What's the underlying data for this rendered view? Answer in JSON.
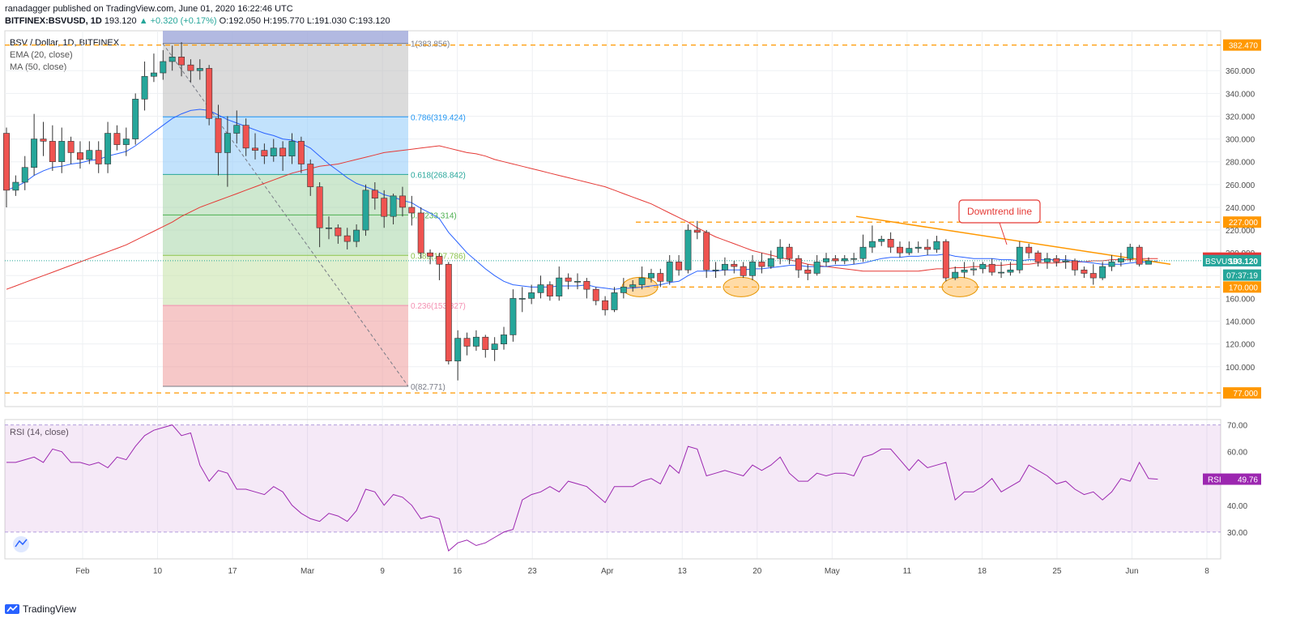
{
  "header": {
    "line1": "ranadagger published on TradingView.com, June 01, 2020 16:22:46 UTC",
    "symbol": "BITFINEX:BSVUSD, 1D",
    "price": "193.120",
    "change": "▲ +0.320 (+0.17%)",
    "ohlc": "O:192.050 H:195.770 L:191.030 C:193.120"
  },
  "legend": {
    "title": "BSV / Dollar, 1D, BITFINEX",
    "ema": "EMA (20, close)",
    "ma": "MA (50, close)"
  },
  "rsi_legend": "RSI (14, close)",
  "annotation": "Downtrend line",
  "footer": "TradingView",
  "colors": {
    "up": "#26a69a",
    "down": "#ef5350",
    "ema": "#2962ff",
    "ma": "#e53935",
    "rsi": "#9c27b0",
    "dashed": "#ff9800",
    "trend": "#ff9800"
  },
  "chart_data": [
    {
      "type": "candlestick",
      "title": "BSV / Dollar, 1D, BITFINEX",
      "ylim": [
        65,
        395
      ],
      "y_ticks": [
        "100.000",
        "120.000",
        "140.000",
        "160.000",
        "180.000",
        "200.000",
        "220.000",
        "240.000",
        "260.000",
        "280.000",
        "300.000",
        "320.000",
        "340.000",
        "360.000"
      ],
      "x_ticks": [
        "Feb",
        "10",
        "17",
        "Mar",
        "9",
        "16",
        "23",
        "Apr",
        "13",
        "20",
        "May",
        "11",
        "18",
        "25",
        "Jun",
        "8"
      ],
      "horizontal_levels": [
        382.47,
        227.0,
        170.0,
        77.0
      ],
      "price_labels": [
        {
          "text": "382.470",
          "value": 382.47,
          "color": "#ff9800"
        },
        {
          "text": "227.000",
          "value": 227.0,
          "color": "#ff9800"
        },
        {
          "text": "MA",
          "value2": "195.388",
          "value": 195.388,
          "color": "#e53935"
        },
        {
          "text": "EMA:MA",
          "value2": "193.143",
          "value": 193.143,
          "color": "#2962ff"
        },
        {
          "text": "BSVUSD",
          "value2": "193.120",
          "value": 193.12,
          "color": "#26a69a"
        },
        {
          "text": "07:37:19",
          "value": 180.5,
          "color": "#26a69a"
        },
        {
          "text": "170.000",
          "value": 170.0,
          "color": "#ff9800"
        },
        {
          "text": "77.000",
          "value": 77.0,
          "color": "#ff9800"
        }
      ],
      "fibonacci": [
        {
          "label": "1(383.856)",
          "level": 383.856,
          "color": "#787b86"
        },
        {
          "label": "0.786(319.424)",
          "level": 319.424,
          "color": "#2196f3"
        },
        {
          "label": "0.618(268.842)",
          "level": 268.842,
          "color": "#26a69a"
        },
        {
          "label": "0.5(233.314)",
          "level": 233.314,
          "color": "#4caf50"
        },
        {
          "label": "0.382(197.786)",
          "level": 197.786,
          "color": "#8bc34a"
        },
        {
          "label": "0.236(153.827)",
          "level": 153.827,
          "color": "#f48fb1"
        },
        {
          "label": "0(82.771)",
          "level": 82.771,
          "color": "#787b86"
        }
      ],
      "candles": [
        [
          305,
          255,
          310,
          240
        ],
        [
          255,
          262,
          268,
          250
        ],
        [
          262,
          275,
          285,
          255
        ],
        [
          275,
          300,
          322,
          268
        ],
        [
          300,
          298,
          315,
          285
        ],
        [
          298,
          280,
          312,
          272
        ],
        [
          280,
          298,
          310,
          270
        ],
        [
          298,
          288,
          302,
          278
        ],
        [
          288,
          282,
          298,
          274
        ],
        [
          282,
          290,
          298,
          278
        ],
        [
          290,
          278,
          298,
          270
        ],
        [
          278,
          305,
          315,
          270
        ],
        [
          305,
          295,
          312,
          290
        ],
        [
          295,
          300,
          310,
          285
        ],
        [
          300,
          335,
          340,
          295
        ],
        [
          335,
          355,
          368,
          325
        ],
        [
          355,
          358,
          375,
          350
        ],
        [
          358,
          368,
          378,
          352
        ],
        [
          368,
          372,
          382,
          360
        ],
        [
          372,
          365,
          385,
          355
        ],
        [
          365,
          360,
          370,
          350
        ],
        [
          360,
          362,
          370,
          352
        ],
        [
          362,
          318,
          365,
          312
        ],
        [
          318,
          288,
          330,
          268
        ],
        [
          288,
          305,
          320,
          258
        ],
        [
          305,
          312,
          325,
          296
        ],
        [
          312,
          292,
          318,
          285
        ],
        [
          292,
          290,
          305,
          282
        ],
        [
          290,
          285,
          296,
          278
        ],
        [
          285,
          292,
          300,
          280
        ],
        [
          292,
          285,
          298,
          272
        ],
        [
          285,
          298,
          305,
          278
        ],
        [
          298,
          278,
          302,
          270
        ],
        [
          278,
          258,
          282,
          250
        ],
        [
          258,
          222,
          262,
          205
        ],
        [
          222,
          222,
          232,
          212
        ],
        [
          222,
          215,
          225,
          208
        ],
        [
          215,
          210,
          222,
          203
        ],
        [
          210,
          220,
          225,
          205
        ],
        [
          220,
          255,
          260,
          215
        ],
        [
          255,
          248,
          262,
          238
        ],
        [
          248,
          232,
          255,
          222
        ],
        [
          232,
          250,
          252,
          225
        ],
        [
          250,
          240,
          258,
          232
        ],
        [
          240,
          235,
          250,
          224
        ],
        [
          235,
          200,
          240,
          195
        ],
        [
          200,
          197,
          203,
          190
        ],
        [
          197,
          190,
          200,
          176
        ],
        [
          190,
          105,
          192,
          102
        ],
        [
          105,
          125,
          132,
          88
        ],
        [
          125,
          118,
          130,
          110
        ],
        [
          118,
          126,
          132,
          114
        ],
        [
          126,
          115,
          128,
          108
        ],
        [
          115,
          120,
          126,
          105
        ],
        [
          120,
          128,
          135,
          115
        ],
        [
          128,
          160,
          168,
          122
        ],
        [
          160,
          160,
          170,
          148
        ],
        [
          160,
          165,
          172,
          155
        ],
        [
          165,
          172,
          180,
          160
        ],
        [
          172,
          162,
          175,
          158
        ],
        [
          162,
          178,
          188,
          158
        ],
        [
          178,
          175,
          182,
          168
        ],
        [
          175,
          175,
          182,
          168
        ],
        [
          175,
          168,
          178,
          160
        ],
        [
          168,
          158,
          170,
          154
        ],
        [
          158,
          150,
          162,
          145
        ],
        [
          150,
          165,
          170,
          148
        ],
        [
          165,
          170,
          178,
          160
        ],
        [
          170,
          172,
          176,
          166
        ],
        [
          172,
          178,
          188,
          168
        ],
        [
          178,
          182,
          186,
          174
        ],
        [
          182,
          175,
          186,
          170
        ],
        [
          175,
          192,
          198,
          172
        ],
        [
          192,
          185,
          198,
          180
        ],
        [
          185,
          220,
          225,
          182
        ],
        [
          220,
          218,
          228,
          212
        ],
        [
          218,
          185,
          220,
          178
        ],
        [
          185,
          185,
          192,
          178
        ],
        [
          185,
          190,
          196,
          180
        ],
        [
          190,
          188,
          193,
          182
        ],
        [
          188,
          180,
          192,
          178
        ],
        [
          180,
          192,
          198,
          176
        ],
        [
          192,
          188,
          200,
          182
        ],
        [
          188,
          195,
          202,
          186
        ],
        [
          195,
          205,
          212,
          190
        ],
        [
          205,
          195,
          208,
          190
        ],
        [
          195,
          185,
          198,
          178
        ],
        [
          185,
          182,
          190,
          176
        ],
        [
          182,
          192,
          198,
          180
        ],
        [
          192,
          195,
          200,
          188
        ],
        [
          195,
          193,
          198,
          190
        ],
        [
          193,
          195,
          198,
          190
        ],
        [
          195,
          195,
          200,
          190
        ],
        [
          195,
          205,
          216,
          192
        ],
        [
          205,
          210,
          224,
          200
        ],
        [
          210,
          212,
          215,
          206
        ],
        [
          212,
          205,
          218,
          200
        ],
        [
          205,
          200,
          210,
          196
        ],
        [
          200,
          204,
          210,
          198
        ],
        [
          204,
          205,
          210,
          200
        ],
        [
          205,
          203,
          212,
          198
        ],
        [
          203,
          210,
          215,
          200
        ],
        [
          210,
          178,
          212,
          175
        ],
        [
          178,
          183,
          188,
          176
        ],
        [
          183,
          185,
          192,
          178
        ],
        [
          185,
          186,
          192,
          180
        ],
        [
          186,
          190,
          192,
          182
        ],
        [
          190,
          183,
          195,
          180
        ],
        [
          183,
          183,
          192,
          178
        ],
        [
          183,
          185,
          192,
          180
        ],
        [
          185,
          205,
          210,
          182
        ],
        [
          205,
          200,
          208,
          195
        ],
        [
          200,
          192,
          202,
          188
        ],
        [
          192,
          195,
          200,
          186
        ],
        [
          195,
          192,
          198,
          188
        ],
        [
          192,
          193,
          198,
          186
        ],
        [
          193,
          185,
          195,
          180
        ],
        [
          185,
          182,
          188,
          178
        ],
        [
          182,
          178,
          190,
          172
        ],
        [
          178,
          188,
          192,
          176
        ],
        [
          188,
          192,
          198,
          184
        ],
        [
          192,
          195,
          200,
          188
        ],
        [
          195,
          205,
          208,
          192
        ],
        [
          205,
          190,
          207,
          188
        ],
        [
          190,
          193,
          196,
          191
        ]
      ],
      "ema20": [
        255,
        258,
        262,
        268,
        272,
        275,
        276,
        278,
        279,
        281,
        282,
        285,
        287,
        289,
        294,
        300,
        306,
        312,
        318,
        322,
        325,
        326,
        325,
        321,
        317,
        314,
        311,
        308,
        305,
        303,
        300,
        299,
        296,
        292,
        285,
        278,
        272,
        266,
        261,
        258,
        255,
        251,
        249,
        246,
        244,
        239,
        235,
        230,
        218,
        209,
        200,
        193,
        186,
        180,
        175,
        172,
        171,
        170,
        170,
        170,
        171,
        171,
        171,
        172,
        170,
        169,
        168,
        169,
        169,
        170,
        171,
        172,
        174,
        175,
        180,
        184,
        184,
        184,
        185,
        185,
        185,
        186,
        186,
        187,
        188,
        189,
        189,
        188,
        188,
        188,
        189,
        189,
        190,
        191,
        193,
        195,
        196,
        196,
        197,
        197,
        198,
        198,
        199,
        197,
        196,
        195,
        195,
        195,
        194,
        194,
        193,
        194,
        194,
        194,
        194,
        194,
        193,
        192,
        191,
        190,
        190,
        190,
        191,
        192,
        192,
        193
      ],
      "ma50": [
        168,
        171,
        174,
        177,
        180,
        183,
        186,
        189,
        192,
        195,
        198,
        201,
        204,
        207,
        211,
        215,
        219,
        223,
        227,
        232,
        236,
        240,
        243,
        246,
        249,
        252,
        255,
        258,
        261,
        264,
        267,
        270,
        272,
        274,
        276,
        277,
        278,
        280,
        282,
        284,
        286,
        288,
        289,
        290,
        291,
        292,
        293,
        294,
        292,
        290,
        288,
        287,
        285,
        282,
        280,
        278,
        276,
        274,
        272,
        270,
        268,
        266,
        264,
        262,
        260,
        258,
        255,
        252,
        249,
        246,
        243,
        239,
        235,
        231,
        227,
        222,
        218,
        214,
        211,
        208,
        205,
        202,
        200,
        198,
        196,
        194,
        192,
        190,
        189,
        188,
        187,
        186,
        185,
        184,
        184,
        184,
        184,
        184,
        184,
        184,
        185,
        186,
        186,
        187,
        187,
        188,
        188,
        189,
        189,
        190,
        190,
        190,
        191,
        191,
        191,
        192,
        192,
        192,
        193,
        193,
        194,
        194,
        194,
        195,
        195,
        195
      ],
      "rsi": {
        "ylim": [
          20,
          72
        ],
        "y_ticks": [
          "30.00",
          "40.00",
          "50.00",
          "60.00",
          "70.00"
        ],
        "levels": [
          30,
          70
        ],
        "last_label": "RSI",
        "last_value": "49.76",
        "values": [
          56,
          56,
          57,
          58,
          56,
          61,
          60,
          56,
          56,
          55,
          56,
          54,
          58,
          57,
          62,
          66,
          68,
          69,
          70,
          66,
          67,
          55,
          49,
          53,
          52,
          46,
          46,
          45,
          44,
          47,
          45,
          40,
          37,
          35,
          34,
          37,
          36,
          34,
          38,
          46,
          45,
          40,
          44,
          43,
          40,
          35,
          36,
          35,
          23,
          26,
          27,
          25,
          26,
          28,
          30,
          31,
          42,
          44,
          45,
          47,
          45,
          49,
          48,
          47,
          44,
          41,
          47,
          47,
          47,
          49,
          50,
          48,
          55,
          52,
          62,
          61,
          51,
          52,
          53,
          52,
          51,
          55,
          53,
          55,
          58,
          52,
          49,
          49,
          52,
          51,
          52,
          52,
          51,
          58,
          59,
          61,
          61,
          57,
          53,
          57,
          54,
          55,
          56,
          42,
          45,
          45,
          47,
          50,
          45,
          47,
          49,
          55,
          53,
          51,
          48,
          49,
          46,
          44,
          45,
          42,
          45,
          50,
          49,
          56,
          50,
          49.76
        ]
      }
    }
  ]
}
